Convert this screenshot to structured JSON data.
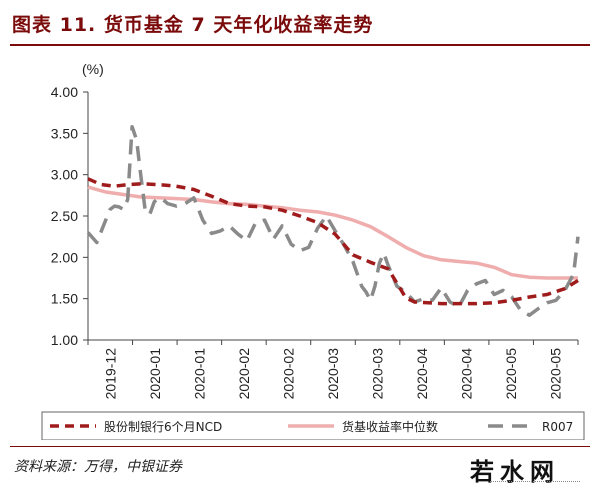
{
  "header": {
    "title": "图表 11. 货币基金 7 天年化收益率走势"
  },
  "footer": {
    "source": "资料来源：万得，中银证券",
    "watermark": "若水网"
  },
  "chart_data": {
    "type": "line",
    "title": "",
    "ylabel": "(%)",
    "ylim": [
      1.0,
      4.0
    ],
    "yticks": [
      "1.00",
      "1.50",
      "2.00",
      "2.50",
      "3.00",
      "3.50",
      "4.00"
    ],
    "xticks": [
      "2019-12",
      "2020-01",
      "2020-01",
      "2020-02",
      "2020-02",
      "2020-03",
      "2020-03",
      "2020-04",
      "2020-04",
      "2020-05",
      "2020-05"
    ],
    "grid": false,
    "legend_position": "bottom",
    "colors": {
      "ncd": "#a01c1c",
      "median": "#efadad",
      "r007": "#8a8a8a",
      "axis": "#444444"
    },
    "x_count": 112,
    "series": [
      {
        "name": "股份制银行6个月NCD",
        "key": "ncd",
        "x": [
          0,
          3,
          6,
          9,
          12,
          16,
          20,
          24,
          28,
          32,
          36,
          40,
          44,
          48,
          52,
          56,
          60,
          64,
          68,
          72,
          74,
          77,
          80,
          84,
          88,
          92,
          96,
          100,
          104,
          108,
          111
        ],
        "values": [
          2.95,
          2.88,
          2.86,
          2.88,
          2.89,
          2.88,
          2.86,
          2.82,
          2.74,
          2.65,
          2.62,
          2.61,
          2.57,
          2.5,
          2.42,
          2.28,
          2.03,
          1.94,
          1.86,
          1.51,
          1.46,
          1.45,
          1.44,
          1.44,
          1.44,
          1.45,
          1.48,
          1.52,
          1.55,
          1.62,
          1.72
        ]
      },
      {
        "name": "货基收益率中位数",
        "key": "median",
        "x": [
          0,
          4,
          8,
          12,
          16,
          20,
          24,
          28,
          32,
          36,
          40,
          44,
          48,
          52,
          56,
          60,
          64,
          68,
          72,
          76,
          80,
          84,
          88,
          92,
          96,
          100,
          104,
          108,
          111
        ],
        "values": [
          2.85,
          2.79,
          2.76,
          2.73,
          2.72,
          2.71,
          2.7,
          2.67,
          2.65,
          2.64,
          2.62,
          2.6,
          2.57,
          2.55,
          2.51,
          2.45,
          2.37,
          2.25,
          2.12,
          2.02,
          1.97,
          1.95,
          1.93,
          1.88,
          1.79,
          1.76,
          1.75,
          1.75,
          1.75
        ]
      },
      {
        "name": "R007",
        "key": "r007",
        "x": [
          0,
          2,
          4,
          5,
          6,
          7,
          8,
          9,
          10,
          11,
          12,
          13,
          14,
          15,
          16,
          17,
          18,
          20,
          22,
          24,
          26,
          28,
          30,
          32,
          34,
          36,
          38,
          40,
          42,
          44,
          46,
          48,
          50,
          52,
          54,
          56,
          58,
          60,
          61,
          62,
          63,
          64,
          65,
          66,
          67,
          68,
          70,
          72,
          74,
          76,
          78,
          80,
          82,
          84,
          86,
          88,
          90,
          92,
          94,
          96,
          98,
          100,
          102,
          104,
          106,
          108,
          110,
          111
        ],
        "values": [
          2.3,
          2.18,
          2.45,
          2.58,
          2.62,
          2.61,
          2.58,
          2.7,
          3.58,
          3.42,
          2.97,
          2.55,
          2.52,
          2.67,
          2.72,
          2.7,
          2.65,
          2.62,
          2.65,
          2.72,
          2.45,
          2.29,
          2.32,
          2.38,
          2.28,
          2.2,
          2.42,
          2.45,
          2.22,
          2.38,
          2.16,
          2.08,
          2.12,
          2.35,
          2.5,
          2.32,
          2.15,
          1.95,
          1.8,
          1.65,
          1.58,
          1.48,
          1.65,
          1.93,
          2.05,
          1.9,
          1.65,
          1.58,
          1.46,
          1.5,
          1.48,
          1.63,
          1.46,
          1.4,
          1.6,
          1.68,
          1.72,
          1.55,
          1.6,
          1.52,
          1.36,
          1.3,
          1.38,
          1.45,
          1.48,
          1.6,
          1.8,
          2.25
        ]
      }
    ]
  }
}
